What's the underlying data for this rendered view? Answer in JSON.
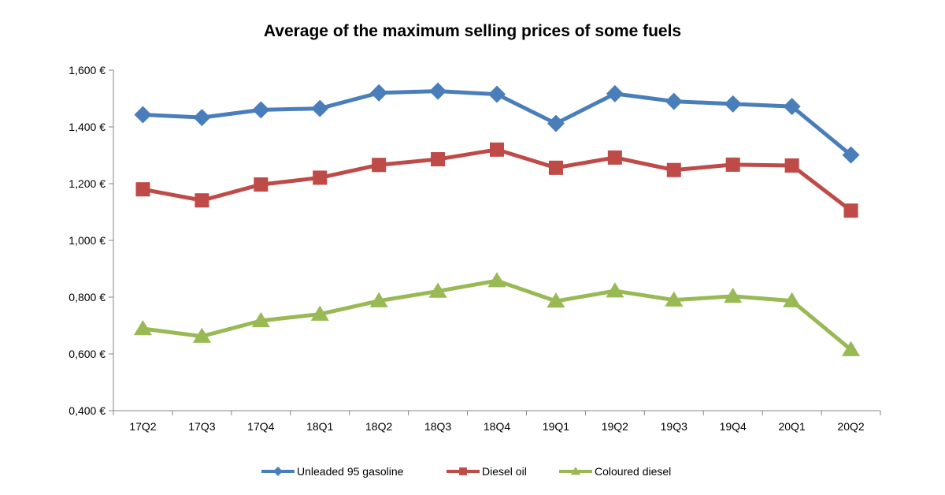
{
  "chart_data": {
    "type": "line",
    "title": "Average of the maximum  selling prices of some fuels",
    "xlabel": "",
    "ylabel": "",
    "categories": [
      "17Q2",
      "17Q3",
      "17Q4",
      "18Q1",
      "18Q2",
      "18Q3",
      "18Q4",
      "19Q1",
      "19Q2",
      "19Q3",
      "19Q4",
      "20Q1",
      "20Q2"
    ],
    "ylim": [
      0.4,
      1.6
    ],
    "yticks": [
      {
        "value": 0.4,
        "label": "0,400 €"
      },
      {
        "value": 0.6,
        "label": "0,600 €"
      },
      {
        "value": 0.8,
        "label": "0,800 €"
      },
      {
        "value": 1.0,
        "label": "1,000 €"
      },
      {
        "value": 1.2,
        "label": "1,200 €"
      },
      {
        "value": 1.4,
        "label": "1,400 €"
      },
      {
        "value": 1.6,
        "label": "1,600 €"
      }
    ],
    "grid": false,
    "legend_position": "bottom",
    "series": [
      {
        "name": "Unleaded 95 gasoline",
        "color": "#4a7ebb",
        "marker": "diamond",
        "values": [
          1.443,
          1.433,
          1.46,
          1.465,
          1.52,
          1.526,
          1.515,
          1.412,
          1.517,
          1.49,
          1.481,
          1.472,
          1.301
        ]
      },
      {
        "name": "Diesel oil",
        "color": "#be4b48",
        "marker": "square",
        "values": [
          1.18,
          1.141,
          1.197,
          1.221,
          1.266,
          1.286,
          1.32,
          1.256,
          1.292,
          1.248,
          1.267,
          1.264,
          1.105
        ]
      },
      {
        "name": "Coloured diesel",
        "color": "#98b954",
        "marker": "triangle",
        "values": [
          0.689,
          0.662,
          0.717,
          0.74,
          0.787,
          0.821,
          0.858,
          0.786,
          0.822,
          0.79,
          0.803,
          0.787,
          0.615
        ]
      }
    ]
  }
}
